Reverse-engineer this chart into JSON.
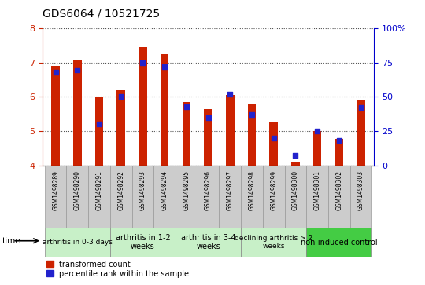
{
  "title": "GDS6064 / 10521725",
  "samples": [
    "GSM1498289",
    "GSM1498290",
    "GSM1498291",
    "GSM1498292",
    "GSM1498293",
    "GSM1498294",
    "GSM1498295",
    "GSM1498296",
    "GSM1498297",
    "GSM1498298",
    "GSM1498299",
    "GSM1498300",
    "GSM1498301",
    "GSM1498302",
    "GSM1498303"
  ],
  "transformed_count": [
    6.9,
    7.1,
    6.0,
    6.2,
    7.45,
    7.25,
    5.85,
    5.65,
    6.05,
    5.78,
    5.25,
    4.1,
    5.0,
    4.78,
    5.9
  ],
  "percentile_rank": [
    68,
    70,
    30,
    50,
    75,
    72,
    43,
    35,
    52,
    37,
    20,
    7,
    25,
    18,
    42
  ],
  "ylim_left": [
    4,
    8
  ],
  "ylim_right": [
    0,
    100
  ],
  "yticks_left": [
    4,
    5,
    6,
    7,
    8
  ],
  "yticks_right": [
    0,
    25,
    50,
    75,
    100
  ],
  "bar_color": "#cc2200",
  "dot_color": "#2222cc",
  "groups": [
    {
      "label": "arthritis in 0-3 days",
      "start": 0,
      "end": 3,
      "color": "#c8f0c8",
      "fontsize": 6.5
    },
    {
      "label": "arthritis in 1-2\nweeks",
      "start": 3,
      "end": 6,
      "color": "#c8f0c8",
      "fontsize": 7
    },
    {
      "label": "arthritis in 3-4\nweeks",
      "start": 6,
      "end": 9,
      "color": "#c8f0c8",
      "fontsize": 7
    },
    {
      "label": "declining arthritis > 2\nweeks",
      "start": 9,
      "end": 12,
      "color": "#c8f0c8",
      "fontsize": 6.5
    },
    {
      "label": "non-induced control",
      "start": 12,
      "end": 15,
      "color": "#44cc44",
      "fontsize": 7
    }
  ],
  "grid_color": "#555555",
  "background_color": "#ffffff",
  "yticklabel_color_left": "#cc2200",
  "yticklabel_color_right": "#0000cc",
  "bar_width": 0.38,
  "sample_bg_color": "#cccccc",
  "sample_edge_color": "#999999"
}
